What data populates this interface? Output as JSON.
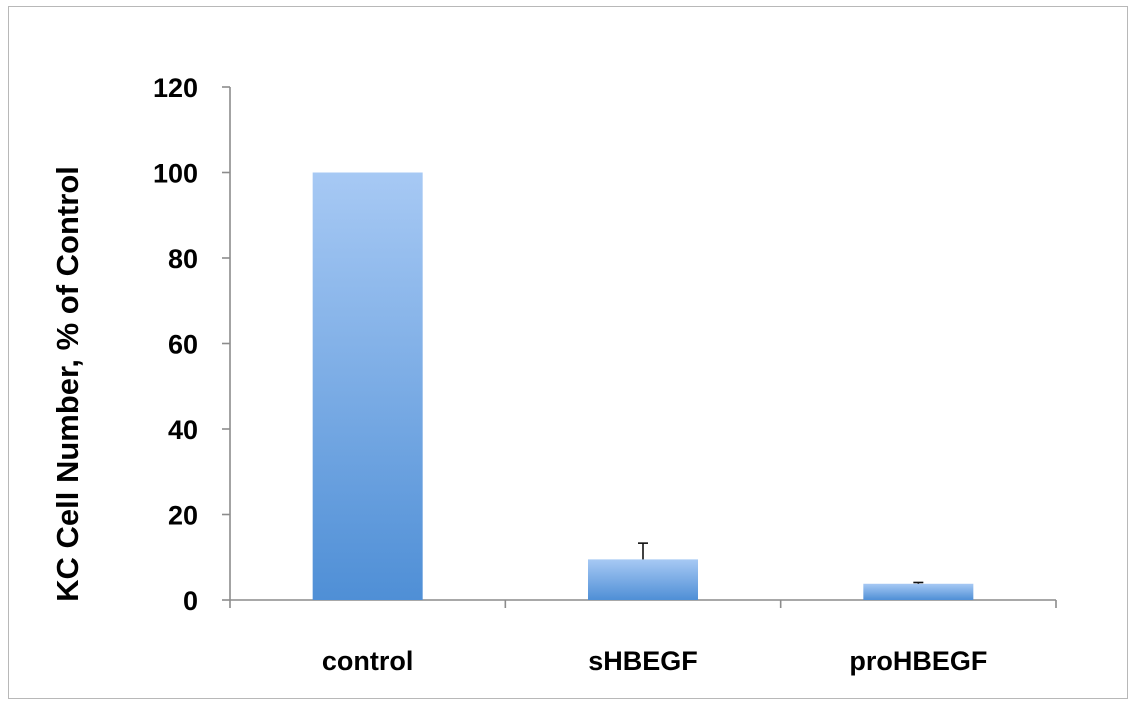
{
  "chart_data": {
    "type": "bar",
    "title": "",
    "xlabel": "",
    "ylabel": "KC Cell Number, % of Control",
    "categories": [
      "control",
      "sHBEGF",
      "proHBEGF"
    ],
    "series": [
      {
        "values": [
          100,
          9.5,
          3.8
        ],
        "error_plus": [
          0,
          3.8,
          0.3
        ]
      }
    ],
    "ylim": [
      0,
      120
    ],
    "yticks": [
      0,
      20,
      40,
      60,
      80,
      100,
      120
    ],
    "grid": false,
    "legend": "none",
    "colors": {
      "bar_top": "#a7c9f4",
      "bar_bottom": "#4f8fd6",
      "axis": "#8c8c8c"
    }
  }
}
